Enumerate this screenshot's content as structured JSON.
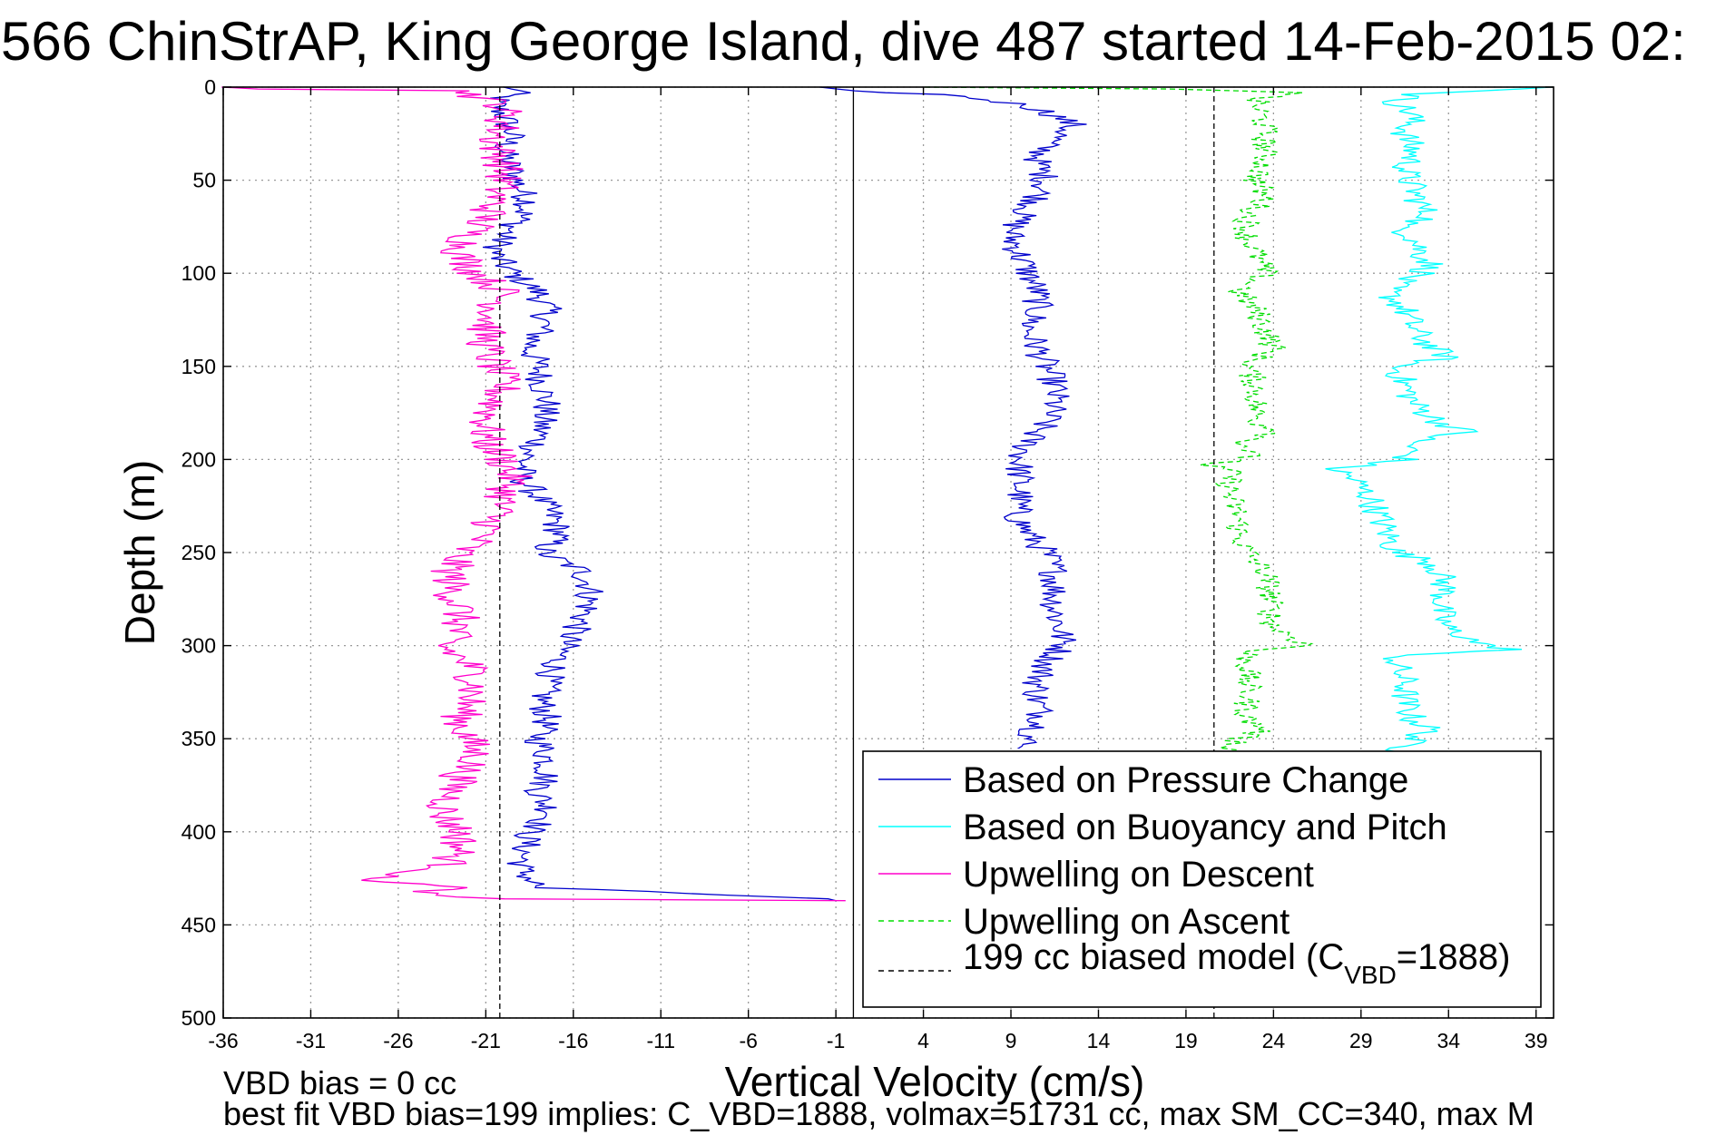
{
  "figure": {
    "title": "566 ChinStrAP, King George Island, dive 487 started 14-Feb-2015 02:",
    "footer_line1": "VBD bias = 0 cc",
    "footer_line2": "best fit VBD bias=199 implies: C_VBD=1888, volmax=51731 cc, max SM_CC=340, max M"
  },
  "chart_data": {
    "type": "line",
    "xlabel": "Vertical Velocity (cm/s)",
    "ylabel": "Depth (m)",
    "xlim": [
      -36,
      40
    ],
    "ylim": [
      0,
      500
    ],
    "y_reversed": true,
    "x_ticks": [
      -36,
      -31,
      -26,
      -21,
      -16,
      -11,
      -6,
      -1,
      4,
      9,
      14,
      19,
      24,
      29,
      34,
      39
    ],
    "x_tick_labels": [
      "-36",
      "-31",
      "-26",
      "-21",
      "-16",
      "-11",
      "-6",
      "-1",
      "4",
      "9",
      "14",
      "19",
      "24",
      "29",
      "34",
      "39"
    ],
    "y_ticks": [
      0,
      50,
      100,
      150,
      200,
      250,
      300,
      350,
      400,
      450,
      500
    ],
    "y_tick_labels": [
      "0",
      "50",
      "100",
      "150",
      "200",
      "250",
      "300",
      "350",
      "400",
      "450",
      "500"
    ],
    "grid": true,
    "legend_position": "bottom-right",
    "zero_line_x": 0,
    "series": [
      {
        "name": "Based on Pressure Change",
        "color": "#0000cc",
        "style": "solid",
        "noise": 0.9,
        "segments": [
          {
            "depth": [
              0,
              2,
              5,
              8,
              15,
              25,
              35,
              45,
              55,
              62,
              70,
              80,
              90,
              100,
              110,
              120,
              130,
              140,
              150,
              160,
              170,
              180,
              190,
              200,
              210,
              220,
              230,
              240,
              250,
              260,
              270,
              280,
              290,
              300,
              310,
              320,
              330,
              340,
              350,
              360,
              370,
              380,
              390,
              400,
              410,
              420,
              430,
              436,
              437
            ],
            "x": [
              -20,
              -19,
              -20,
              -20.5,
              -20,
              -19.5,
              -20,
              -19.5,
              -19,
              -18.5,
              -19,
              -20,
              -20.5,
              -19.5,
              -18,
              -17.5,
              -17.8,
              -18.5,
              -18,
              -17.8,
              -17.5,
              -17.8,
              -18,
              -18.8,
              -19,
              -18,
              -17.2,
              -16.8,
              -17.8,
              -15.5,
              -15,
              -15.2,
              -15.8,
              -16.5,
              -17,
              -17.5,
              -17.8,
              -17.5,
              -18,
              -17.5,
              -17.5,
              -18,
              -17.2,
              -18.5,
              -18.8,
              -19,
              -18,
              -1.5,
              -1
            ]
          },
          {
            "depth": [
              0,
              2,
              4,
              6,
              10,
              15,
              20,
              25,
              30,
              40,
              50,
              60,
              70,
              80,
              90,
              100,
              110,
              120,
              130,
              140,
              150,
              160,
              170,
              180,
              190,
              200,
              210,
              220,
              230,
              240,
              250,
              260,
              270,
              280,
              290,
              300,
              310,
              320,
              330,
              340,
              350,
              355
            ],
            "x": [
              -2,
              0,
              5,
              7,
              10,
              11.5,
              12.5,
              12,
              11,
              10.5,
              11,
              10.5,
              9.5,
              9,
              9.5,
              10,
              10.5,
              10.5,
              10,
              10.5,
              11,
              11.5,
              11.5,
              11,
              10,
              9.5,
              9.5,
              9.5,
              9.3,
              10,
              11,
              11.5,
              11.5,
              11.5,
              11.8,
              12,
              11,
              10.5,
              10.5,
              10.8,
              10,
              9.5
            ]
          }
        ]
      },
      {
        "name": "Based on Buoyancy and Pitch",
        "color": "#00ffff",
        "style": "solid",
        "noise": 0.9,
        "segments": [
          {
            "depth": [
              0,
              2,
              4,
              8,
              15,
              25,
              35,
              45,
              55,
              65,
              70,
              75,
              80,
              90,
              95,
              100,
              105,
              110,
              120,
              130,
              140,
              145,
              150,
              160,
              170,
              180,
              185,
              190,
              200,
              205,
              210,
              220,
              230,
              240,
              250,
              255,
              260,
              270,
              280,
              290,
              300,
              302,
              305,
              310,
              320,
              330,
              340,
              345,
              350,
              358
            ],
            "x": [
              40,
              36,
              32,
              31,
              32,
              31.5,
              32,
              31.5,
              32,
              32.5,
              33,
              31,
              32,
              32.5,
              33,
              32.5,
              31,
              30.5,
              31.5,
              32,
              33,
              34,
              31,
              31.5,
              32,
              33.5,
              35,
              32,
              31.5,
              27.5,
              28.5,
              29.5,
              30,
              30.5,
              31,
              33,
              33.5,
              33.8,
              33.5,
              33.8,
              36,
              38,
              31,
              31,
              31.5,
              31.5,
              32,
              33,
              32,
              31
            ]
          }
        ]
      },
      {
        "name": "Upwelling on Descent",
        "color": "#ff00cc",
        "style": "solid",
        "noise": 1.2,
        "segments": [
          {
            "depth": [
              0,
              1,
              2,
              5,
              10,
              20,
              30,
              40,
              50,
              60,
              70,
              80,
              90,
              100,
              110,
              120,
              130,
              140,
              150,
              160,
              170,
              180,
              190,
              200,
              210,
              220,
              230,
              240,
              250,
              260,
              270,
              280,
              290,
              300,
              310,
              320,
              330,
              340,
              350,
              360,
              370,
              380,
              390,
              400,
              410,
              420,
              425,
              428,
              430,
              434,
              436,
              437
            ],
            "x": [
              -36,
              -34,
              -22,
              -21.5,
              -20,
              -20,
              -20.5,
              -20,
              -20,
              -20.5,
              -21,
              -22,
              -22.5,
              -21.5,
              -20,
              -20.5,
              -21,
              -21,
              -20.5,
              -20,
              -20.5,
              -21,
              -21,
              -20,
              -19.5,
              -20,
              -20.5,
              -21,
              -22.5,
              -23,
              -23,
              -22.5,
              -22.5,
              -23.5,
              -22,
              -21.5,
              -22,
              -22.5,
              -22,
              -21.5,
              -22.5,
              -23,
              -23.5,
              -22.5,
              -22.5,
              -23.5,
              -28,
              -25,
              -23,
              -25,
              -20,
              -0.5
            ]
          }
        ]
      },
      {
        "name": "Upwelling on Ascent",
        "color": "#00dd00",
        "style": "dashed",
        "noise": 0.8,
        "segments": [
          {
            "depth": [
              0,
              1,
              3,
              6,
              10,
              20,
              30,
              40,
              50,
              60,
              70,
              80,
              90,
              100,
              110,
              120,
              130,
              140,
              150,
              160,
              170,
              180,
              185,
              190,
              200,
              203,
              206,
              210,
              220,
              230,
              240,
              250,
              260,
              270,
              280,
              290,
              300,
              303,
              306,
              310,
              320,
              330,
              340,
              345,
              350,
              358
            ],
            "x": [
              4,
              18,
              26,
              23,
              23,
              23.5,
              23.5,
              23.5,
              23,
              23.5,
              22.5,
              22.5,
              23,
              23.5,
              22,
              23,
              23.5,
              24,
              22.5,
              23,
              23,
              23,
              24.5,
              22.5,
              22.5,
              20,
              21.5,
              21.5,
              21.5,
              22,
              22,
              22.5,
              23.5,
              23.8,
              23.8,
              24,
              26,
              22.5,
              22.5,
              22.5,
              22.5,
              22.5,
              22.5,
              23.5,
              22,
              21.5
            ]
          }
        ]
      },
      {
        "name": "199 cc biased model (C_VBD=1888)",
        "color": "#000000",
        "style": "dashed",
        "segments": [
          {
            "depth": [
              0,
              500
            ],
            "x": [
              -20.2,
              -20.2
            ]
          },
          {
            "depth": [
              0,
              500
            ],
            "x": [
              20.6,
              20.6
            ]
          }
        ]
      }
    ]
  },
  "legend": {
    "items": [
      {
        "label": "Based on Pressure Change"
      },
      {
        "label": "Based on Buoyancy and Pitch"
      },
      {
        "label": "Upwelling on Descent"
      },
      {
        "label": "Upwelling on Ascent"
      },
      {
        "label": "199 cc biased model (C",
        "subscript": "VBD",
        "suffix": "=1888)"
      }
    ]
  }
}
